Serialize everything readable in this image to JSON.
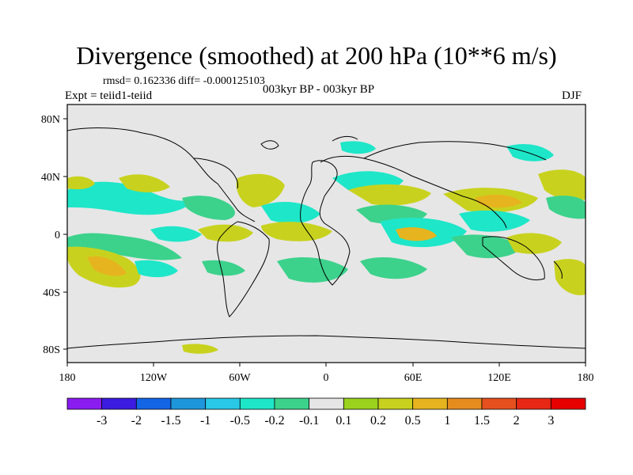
{
  "title": "Divergence (smoothed) at 200 hPa (10**6 m/s)",
  "stats_line": "rmsd= 0.162336 diff= -0.000125103",
  "left_label": "Expt = teiid1-teiid",
  "center_label": "003kyr BP - 003kyr BP",
  "right_label": "DJF",
  "lat_labels": [
    "80N",
    "40N",
    "0",
    "40S",
    "80S"
  ],
  "lon_labels": [
    "180",
    "120W",
    "60W",
    "0",
    "60E",
    "120E",
    "180"
  ],
  "colorbar": {
    "labels": [
      "-3",
      "-2",
      "-1.5",
      "-1",
      "-0.5",
      "-0.2",
      "-0.1",
      "0.1",
      "0.2",
      "0.5",
      "1",
      "1.5",
      "2",
      "3"
    ],
    "colors": [
      "#8a1cf0",
      "#3c1ce0",
      "#1464e6",
      "#1e96dc",
      "#28c8e6",
      "#1ee6c8",
      "#3cd28c",
      "#e6e6e6",
      "#9ad21e",
      "#c8d21e",
      "#e6b41e",
      "#e68c1e",
      "#e6501e",
      "#e62814",
      "#e60000"
    ]
  },
  "colors": {
    "land_fill": "#e6e6e6",
    "coastline": "#000000",
    "neg_weak": "#3cd28c",
    "neg_med": "#1ee6c8",
    "pos_weak": "#9ad21e",
    "pos_med": "#c8d21e",
    "pos_strong": "#e6b41e"
  }
}
